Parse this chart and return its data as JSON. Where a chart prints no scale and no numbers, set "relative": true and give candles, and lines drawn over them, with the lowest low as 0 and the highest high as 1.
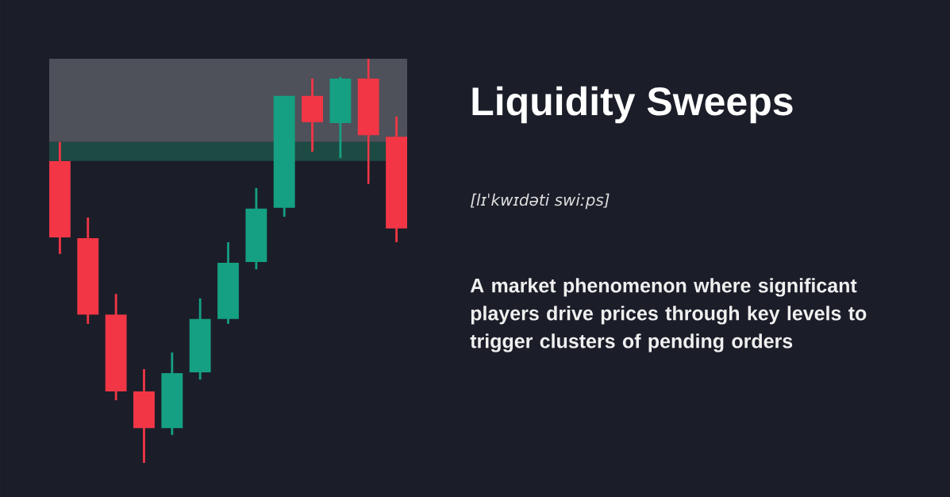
{
  "chart_data": {
    "type": "candlestick",
    "title": "Liquidity Sweeps",
    "subtitle": "[lɪˈkwɪdəti swiːps]",
    "annotations": [
      "A market phenomenon where significant players drive prices through key levels to trigger clusters of pending orders"
    ],
    "relative": true,
    "categories": [
      null,
      null,
      null,
      null,
      null,
      null,
      null,
      null,
      null,
      null,
      null,
      null,
      null
    ],
    "ohlc": [
      [
        0.747,
        0.794,
        0.517,
        0.558
      ],
      [
        0.556,
        0.607,
        0.344,
        0.367
      ],
      [
        0.367,
        0.418,
        0.155,
        0.177
      ],
      [
        0.177,
        0.232,
        0,
        0.086
      ],
      [
        0.086,
        0.273,
        0.069,
        0.222
      ],
      [
        0.224,
        0.407,
        0.206,
        0.356
      ],
      [
        0.356,
        0.546,
        0.344,
        0.495
      ],
      [
        0.497,
        0.68,
        0.479,
        0.629
      ],
      [
        0.631,
        0.908,
        0.609,
        0.908
      ],
      [
        0.908,
        0.951,
        0.77,
        0.843
      ],
      [
        0.841,
        0.955,
        0.754,
        0.951
      ],
      [
        0.951,
        1,
        0.69,
        0.811
      ],
      [
        0.807,
        0.857,
        0.546,
        0.58
      ]
    ],
    "colors": [
      "#f23645",
      "#f23645",
      "#f23645",
      "#f23645",
      "#15a083",
      "#15a083",
      "#15a083",
      "#15a083",
      "#15a083",
      "#f23645",
      "#15a083",
      "#f23645",
      "#f23645"
    ],
    "bands": [
      {
        "axis": "y",
        "from": 0.747,
        "to": 0.794,
        "color": "#1d4a43"
      },
      {
        "axis": "y",
        "from": 0.794,
        "to": 1,
        "color": "#4e5159"
      }
    ]
  }
}
